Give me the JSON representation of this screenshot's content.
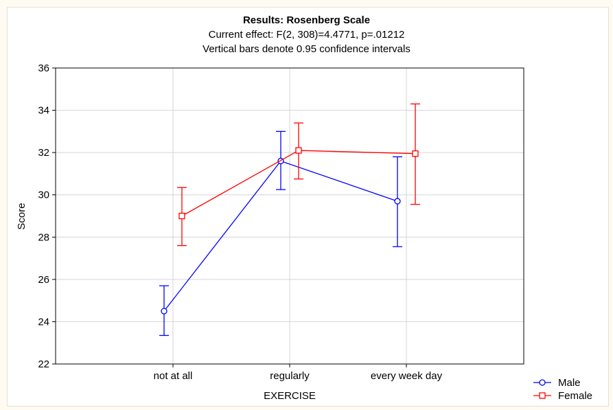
{
  "chart_data": {
    "type": "line",
    "title": "Results: Rosenberg Scale",
    "subtitle_lines": [
      "Current effect: F(2, 308)=4.4771, p=.01212",
      "Vertical bars denote 0.95 confidence intervals"
    ],
    "xlabel": "EXERCISE",
    "ylabel": "Score",
    "categories": [
      "not at all",
      "regularly",
      "every week day"
    ],
    "ylim": [
      22,
      36
    ],
    "yticks": [
      22,
      24,
      26,
      28,
      30,
      32,
      34,
      36
    ],
    "grid": true,
    "legend_position": "bottom-right",
    "series": [
      {
        "name": "Male",
        "color": "#0000ff",
        "marker": "circle",
        "values": [
          24.5,
          31.6,
          29.7
        ],
        "ci_low": [
          23.35,
          30.25,
          27.55
        ],
        "ci_high": [
          25.7,
          33.0,
          31.8
        ]
      },
      {
        "name": "Female",
        "color": "#ff0000",
        "marker": "square",
        "values": [
          29.0,
          32.1,
          31.95
        ],
        "ci_low": [
          27.6,
          30.75,
          29.55
        ],
        "ci_high": [
          30.35,
          33.4,
          34.3
        ]
      }
    ]
  }
}
